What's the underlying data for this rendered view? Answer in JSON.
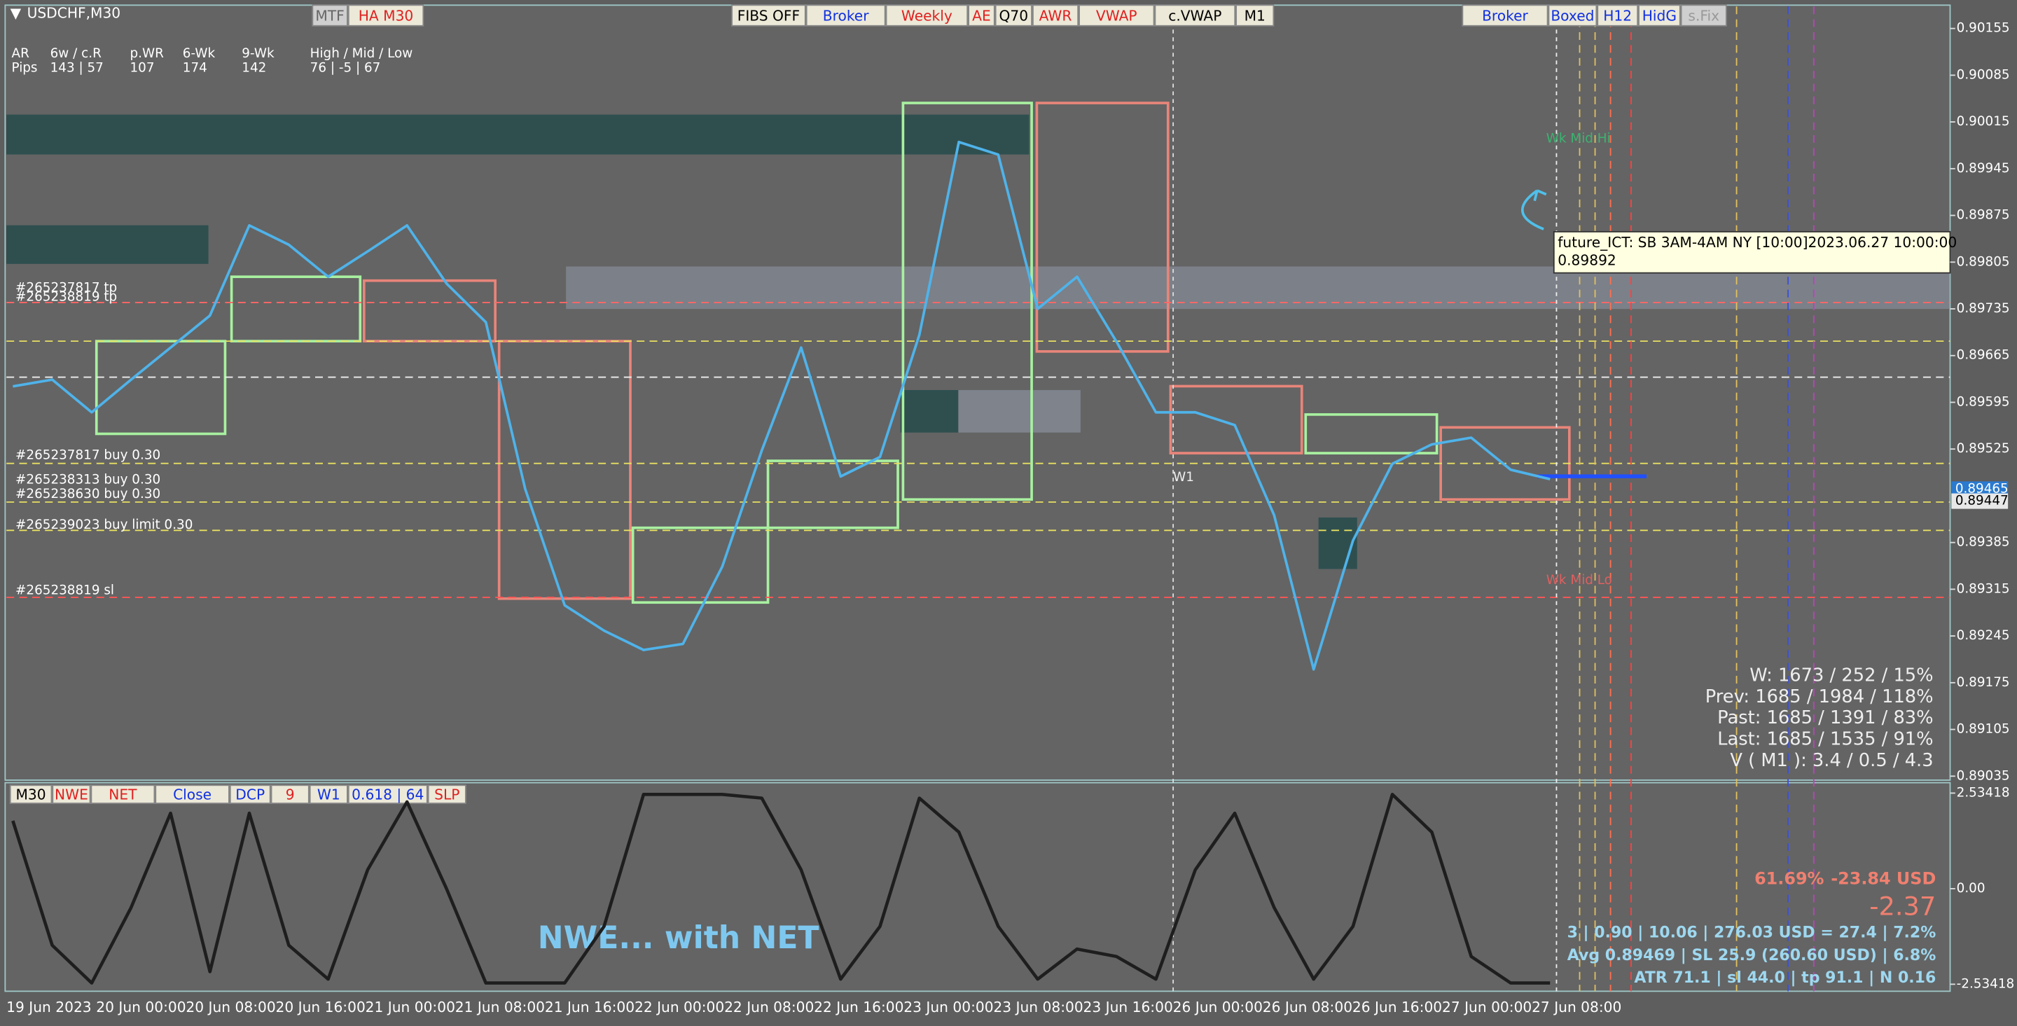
{
  "header": {
    "symbol": "USDCHF,M30",
    "left_buttons": [
      "MTF",
      "HA M30"
    ],
    "center_buttons": [
      "FIBS OFF",
      "Broker",
      "Weekly",
      "AE",
      "Q70",
      "AWR",
      "VWAP",
      "c.VWAP",
      "M1"
    ],
    "right_buttons": [
      "Broker",
      "Boxed",
      "H12",
      "HidG",
      "s.Fix"
    ]
  },
  "info_panel": {
    "rows": [
      [
        "AR",
        "6w / c.R",
        "p.WR",
        "6-Wk",
        "9-Wk",
        "High / Mid / Low"
      ],
      [
        "Pips",
        "143 | 57",
        "107",
        "174",
        "142",
        "76 | -5 | 67"
      ]
    ]
  },
  "orders": [
    "#265237817 tp",
    "#265238819 tp",
    "#265237817 buy 0.30",
    "#265238313 buy 0.30",
    "#265238630 buy 0.30",
    "#265239023 buy limit 0.30",
    "#265238819 sl"
  ],
  "session_labels": [
    "Wk Mid Hi",
    "Wk Mid Lo",
    "W1"
  ],
  "tooltip": [
    "future_ICT: SB 3AM-4AM NY [10:00]2023.06.27 10:00:00",
    "0.89892"
  ],
  "stats": [
    "W: 1673 / 252 / 15%",
    "Prev: 1685 / 1984 / 118%",
    "Past: 1685 / 1391 / 83%",
    "Last: 1685 / 1535 / 91%",
    "V ( M1 ): 3.4 / 0.5 / 4.3"
  ],
  "time_axis": {
    "labels": [
      "19 Jun 2023",
      "20 Jun 00:00",
      "20 Jun 08:00",
      "20 Jun 16:00",
      "21 Jun 00:00",
      "21 Jun 08:00",
      "21 Jun 16:00",
      "22 Jun 00:00",
      "22 Jun 08:00",
      "22 Jun 16:00",
      "23 Jun 00:00",
      "23 Jun 08:00",
      "23 Jun 16:00",
      "26 Jun 00:00",
      "26 Jun 08:00",
      "26 Jun 16:00",
      "27 Jun 00:00",
      "27 Jun 08:00"
    ]
  },
  "sub_buttons": [
    "M30",
    "NWE",
    "NET",
    "Close",
    "DCP",
    "9",
    "W1",
    "0.618 | 64",
    "SLP"
  ],
  "trade_panel": {
    "percent": "61.69%",
    "profit": "-23.84 USD",
    "pips": "-2.37",
    "lines": [
      "3  |  0.90  |  10.06  |  276.03 USD = 27.4  |  7.2%",
      "Avg 0.89469  |  SL 25.9 (260.60 USD)  |  6.8%",
      "ATR 71.1  |  sl 44.0  |  tp 91.1  |  N 0.16"
    ]
  },
  "chart_data": [
    {
      "type": "line",
      "color": "#4fb3ea",
      "values": [
        0.89619,
        0.89629,
        0.8958,
        0.89629,
        0.89677,
        0.89725,
        0.8986,
        0.89831,
        0.89783,
        0.89821,
        0.8986,
        0.89773,
        0.89715,
        0.89465,
        0.89291,
        0.89253,
        0.89224,
        0.89233,
        0.89349,
        0.89523,
        0.89677,
        0.89484,
        0.89513,
        0.89696,
        0.89985,
        0.89966,
        0.89735,
        0.89783,
        0.89686,
        0.8958,
        0.8958,
        0.89561,
        0.89426,
        0.89195,
        0.89388,
        0.89503,
        0.89532,
        0.89542,
        0.89494,
        0.8948
      ],
      "ylim": [
        0.89031,
        0.90188
      ],
      "yticks": [
        0.89035,
        0.89105,
        0.89175,
        0.89245,
        0.89315,
        0.89385,
        0.89525,
        0.89595,
        0.89665,
        0.89735,
        0.89805,
        0.89875,
        0.89945,
        0.90015,
        0.90085,
        0.90155
      ],
      "price_tags": [
        0.89465,
        0.89447
      ]
    },
    {
      "type": "line",
      "color": "#1e1e1e",
      "annotation": "NWE... with NET",
      "values": [
        1.8,
        -1.5,
        -2.5,
        -0.5,
        2.0,
        -2.2,
        2.0,
        -1.5,
        -2.4,
        0.5,
        2.3,
        0,
        -2.5,
        -2.5,
        -2.5,
        -1.0,
        2.5,
        2.5,
        2.5,
        2.4,
        0.5,
        -2.4,
        -1.0,
        2.4,
        1.5,
        -1.0,
        -2.4,
        -1.6,
        -1.8,
        -2.4,
        0.5,
        2.0,
        -0.5,
        -2.4,
        -1.0,
        2.5,
        1.5,
        -1.8,
        -2.5,
        -2.5
      ],
      "ylim": [
        -2.72,
        2.81
      ],
      "yticks": [
        -2.53418,
        {
          "value": 0,
          "label": "0.00"
        },
        2.53418
      ]
    }
  ]
}
